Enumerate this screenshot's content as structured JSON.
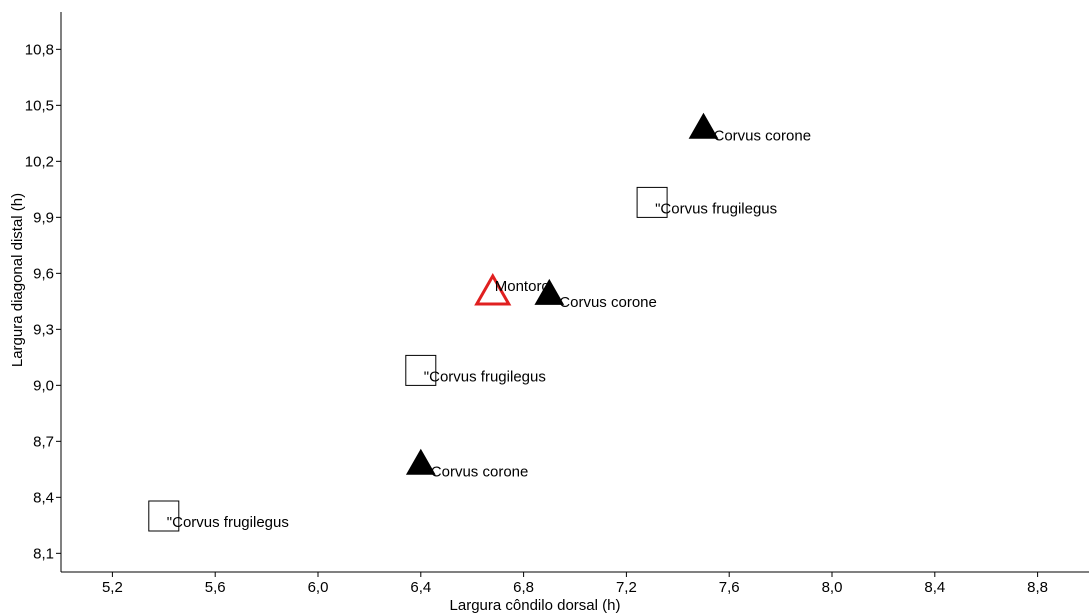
{
  "chart_data": {
    "type": "scatter",
    "xlabel": "Largura côndilo dorsal (h)",
    "ylabel": "Largura diagonal distal (h)",
    "xlim": [
      5.0,
      9.0
    ],
    "ylim": [
      8.0,
      11.0
    ],
    "xticks": [
      "5,2",
      "5,6",
      "6,0",
      "6,4",
      "6,8",
      "7,2",
      "7,6",
      "8,0",
      "8,4",
      "8,8"
    ],
    "xtick_values": [
      5.2,
      5.6,
      6.0,
      6.4,
      6.8,
      7.2,
      7.6,
      8.0,
      8.4,
      8.8
    ],
    "yticks": [
      "8,1",
      "8,4",
      "8,7",
      "9,0",
      "9,3",
      "9,6",
      "9,9",
      "10,2",
      "10,5",
      "10,8"
    ],
    "ytick_values": [
      8.1,
      8.4,
      8.7,
      9.0,
      9.3,
      9.6,
      9.9,
      10.2,
      10.5,
      10.8
    ],
    "grid": false,
    "points": [
      {
        "x": 7.5,
        "y": 10.38,
        "marker": "filled-triangle",
        "label": "Corvus corone"
      },
      {
        "x": 7.3,
        "y": 9.98,
        "marker": "open-square",
        "label": "\"Corvus frugilegus"
      },
      {
        "x": 6.68,
        "y": 9.5,
        "marker": "open-triangle",
        "label": "Montoro",
        "color": "#e02020"
      },
      {
        "x": 6.9,
        "y": 9.49,
        "marker": "filled-triangle",
        "label": "Corvus corone"
      },
      {
        "x": 6.4,
        "y": 9.08,
        "marker": "open-square",
        "label": "\"Corvus frugilegus"
      },
      {
        "x": 6.4,
        "y": 8.58,
        "marker": "filled-triangle",
        "label": "Corvus corone"
      },
      {
        "x": 5.4,
        "y": 8.3,
        "marker": "open-square",
        "label": "\"Corvus frugilegus"
      }
    ]
  }
}
